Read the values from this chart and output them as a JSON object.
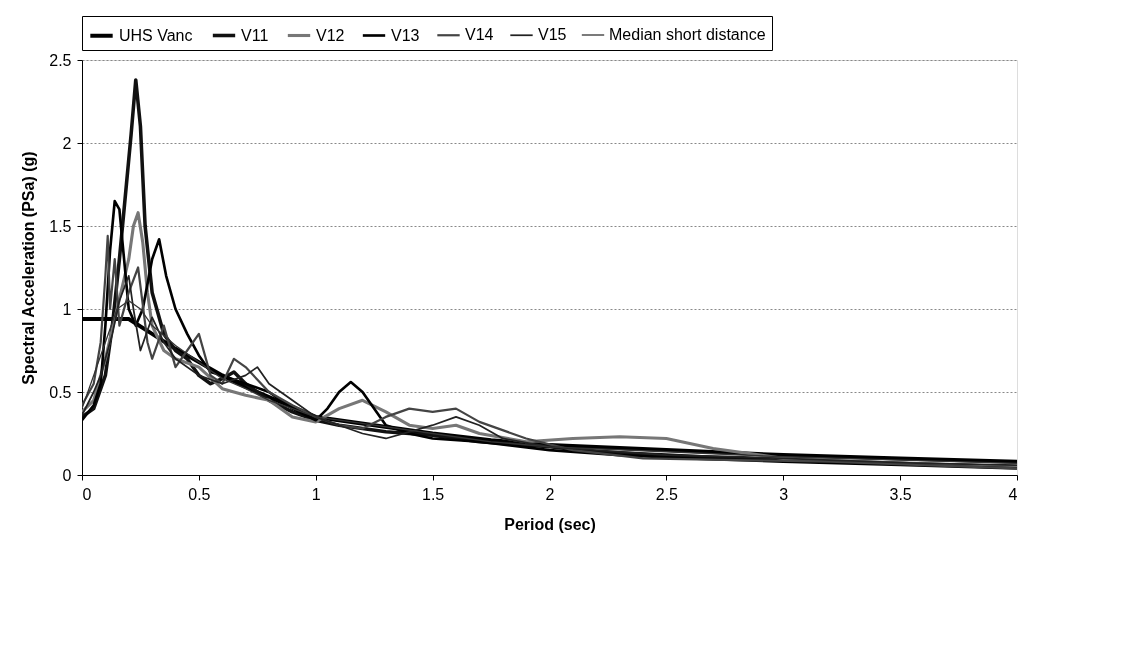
{
  "chart_data": {
    "type": "line",
    "xlabel": "Period (sec)",
    "ylabel": "Spectral Acceleration (PSa) (g)",
    "xlim": [
      0,
      4
    ],
    "xticks": [
      0,
      0.5,
      1,
      1.5,
      2,
      2.5,
      3,
      3.5,
      4
    ],
    "ylim": [
      0,
      2.5
    ],
    "yticks": [
      0,
      0.5,
      1,
      1.5,
      2,
      2.5
    ],
    "grid": "y",
    "legend": "top",
    "line_style": "solid",
    "marker": "none",
    "series": [
      {
        "name": "UHS Vanc",
        "color": "#000000",
        "x": [
          0,
          0.2,
          0.3,
          0.4,
          0.5,
          0.6,
          0.7,
          0.8,
          0.9,
          1.0,
          1.25,
          1.5,
          1.75,
          2.0,
          2.5,
          3.0,
          3.5,
          4.0
        ],
        "values": [
          0.94,
          0.94,
          0.85,
          0.76,
          0.68,
          0.6,
          0.53,
          0.47,
          0.41,
          0.35,
          0.3,
          0.25,
          0.21,
          0.18,
          0.15,
          0.12,
          0.1,
          0.08
        ]
      },
      {
        "name": "V11",
        "color": "#111111",
        "x": [
          0,
          0.05,
          0.1,
          0.13,
          0.16,
          0.19,
          0.21,
          0.23,
          0.25,
          0.27,
          0.3,
          0.35,
          0.4,
          0.45,
          0.5,
          0.55,
          0.6,
          0.65,
          0.7,
          0.8,
          0.9,
          1.0,
          1.1,
          1.2,
          1.3,
          1.4,
          1.5,
          1.7,
          2.0,
          2.2,
          2.5,
          2.8,
          3.0,
          3.5,
          4.0
        ],
        "values": [
          0.35,
          0.4,
          0.6,
          0.9,
          1.3,
          1.75,
          2.05,
          2.38,
          2.1,
          1.5,
          1.1,
          0.85,
          0.75,
          0.7,
          0.6,
          0.55,
          0.58,
          0.62,
          0.55,
          0.45,
          0.38,
          0.33,
          0.3,
          0.28,
          0.26,
          0.25,
          0.24,
          0.2,
          0.17,
          0.14,
          0.12,
          0.1,
          0.09,
          0.07,
          0.05
        ]
      },
      {
        "name": "V12",
        "color": "#777777",
        "x": [
          0,
          0.05,
          0.1,
          0.15,
          0.2,
          0.22,
          0.24,
          0.26,
          0.28,
          0.3,
          0.35,
          0.4,
          0.5,
          0.6,
          0.7,
          0.8,
          0.9,
          1.0,
          1.1,
          1.2,
          1.3,
          1.4,
          1.5,
          1.6,
          1.7,
          1.9,
          2.1,
          2.3,
          2.5,
          2.7,
          3.0,
          3.5,
          4.0
        ],
        "values": [
          0.38,
          0.45,
          0.7,
          1.0,
          1.3,
          1.5,
          1.58,
          1.4,
          1.1,
          0.9,
          0.75,
          0.7,
          0.65,
          0.52,
          0.48,
          0.45,
          0.35,
          0.32,
          0.4,
          0.45,
          0.38,
          0.3,
          0.28,
          0.3,
          0.25,
          0.2,
          0.22,
          0.23,
          0.22,
          0.16,
          0.1,
          0.07,
          0.05
        ]
      },
      {
        "name": "V13",
        "color": "#000000",
        "x": [
          0,
          0.05,
          0.08,
          0.1,
          0.12,
          0.14,
          0.16,
          0.18,
          0.2,
          0.23,
          0.26,
          0.3,
          0.33,
          0.36,
          0.4,
          0.45,
          0.5,
          0.55,
          0.6,
          0.7,
          0.8,
          0.9,
          1.0,
          1.05,
          1.1,
          1.15,
          1.2,
          1.3,
          1.4,
          1.5,
          1.7,
          2.0,
          2.3,
          2.6,
          3.0,
          3.5,
          4.0
        ],
        "values": [
          0.33,
          0.42,
          0.55,
          0.9,
          1.35,
          1.65,
          1.6,
          1.3,
          1.0,
          0.9,
          1.0,
          1.3,
          1.42,
          1.2,
          1.0,
          0.85,
          0.72,
          0.62,
          0.6,
          0.55,
          0.5,
          0.4,
          0.33,
          0.4,
          0.5,
          0.56,
          0.5,
          0.3,
          0.25,
          0.22,
          0.2,
          0.15,
          0.12,
          0.1,
          0.08,
          0.06,
          0.04
        ]
      },
      {
        "name": "V14",
        "color": "#444444",
        "x": [
          0,
          0.05,
          0.08,
          0.1,
          0.11,
          0.12,
          0.14,
          0.16,
          0.2,
          0.24,
          0.28,
          0.3,
          0.35,
          0.4,
          0.45,
          0.5,
          0.55,
          0.6,
          0.65,
          0.7,
          0.8,
          0.9,
          1.0,
          1.1,
          1.2,
          1.3,
          1.4,
          1.5,
          1.6,
          1.7,
          1.9,
          2.1,
          2.4,
          2.8,
          3.2,
          3.6,
          4.0
        ],
        "values": [
          0.42,
          0.55,
          0.8,
          1.2,
          1.44,
          1.0,
          1.3,
          0.9,
          1.1,
          1.25,
          0.8,
          0.7,
          0.9,
          0.65,
          0.75,
          0.85,
          0.6,
          0.55,
          0.7,
          0.65,
          0.5,
          0.42,
          0.35,
          0.3,
          0.28,
          0.35,
          0.4,
          0.38,
          0.4,
          0.32,
          0.22,
          0.15,
          0.1,
          0.09,
          0.08,
          0.06,
          0.04
        ]
      },
      {
        "name": "V15",
        "color": "#222222",
        "x": [
          0,
          0.05,
          0.08,
          0.1,
          0.13,
          0.16,
          0.2,
          0.22,
          0.25,
          0.3,
          0.35,
          0.4,
          0.5,
          0.6,
          0.7,
          0.75,
          0.8,
          0.9,
          1.0,
          1.1,
          1.2,
          1.3,
          1.4,
          1.5,
          1.6,
          1.7,
          1.8,
          2.0,
          2.2,
          2.5,
          2.8,
          3.2,
          3.6,
          4.0
        ],
        "values": [
          0.36,
          0.5,
          0.6,
          0.7,
          0.85,
          1.05,
          1.2,
          1.0,
          0.75,
          0.95,
          0.8,
          0.7,
          0.6,
          0.55,
          0.6,
          0.65,
          0.55,
          0.45,
          0.35,
          0.3,
          0.25,
          0.22,
          0.26,
          0.3,
          0.35,
          0.3,
          0.22,
          0.17,
          0.15,
          0.12,
          0.11,
          0.09,
          0.07,
          0.06
        ]
      },
      {
        "name": "Median short distance",
        "color": "#333333",
        "x": [
          0,
          0.1,
          0.15,
          0.2,
          0.25,
          0.3,
          0.4,
          0.5,
          0.6,
          0.7,
          0.8,
          0.9,
          1.0,
          1.25,
          1.5,
          1.75,
          2.0,
          2.5,
          3.0,
          3.5,
          4.0
        ],
        "values": [
          0.4,
          0.8,
          1.0,
          1.05,
          1.0,
          0.9,
          0.78,
          0.68,
          0.58,
          0.52,
          0.45,
          0.4,
          0.35,
          0.3,
          0.25,
          0.2,
          0.17,
          0.14,
          0.11,
          0.09,
          0.07
        ]
      }
    ]
  }
}
